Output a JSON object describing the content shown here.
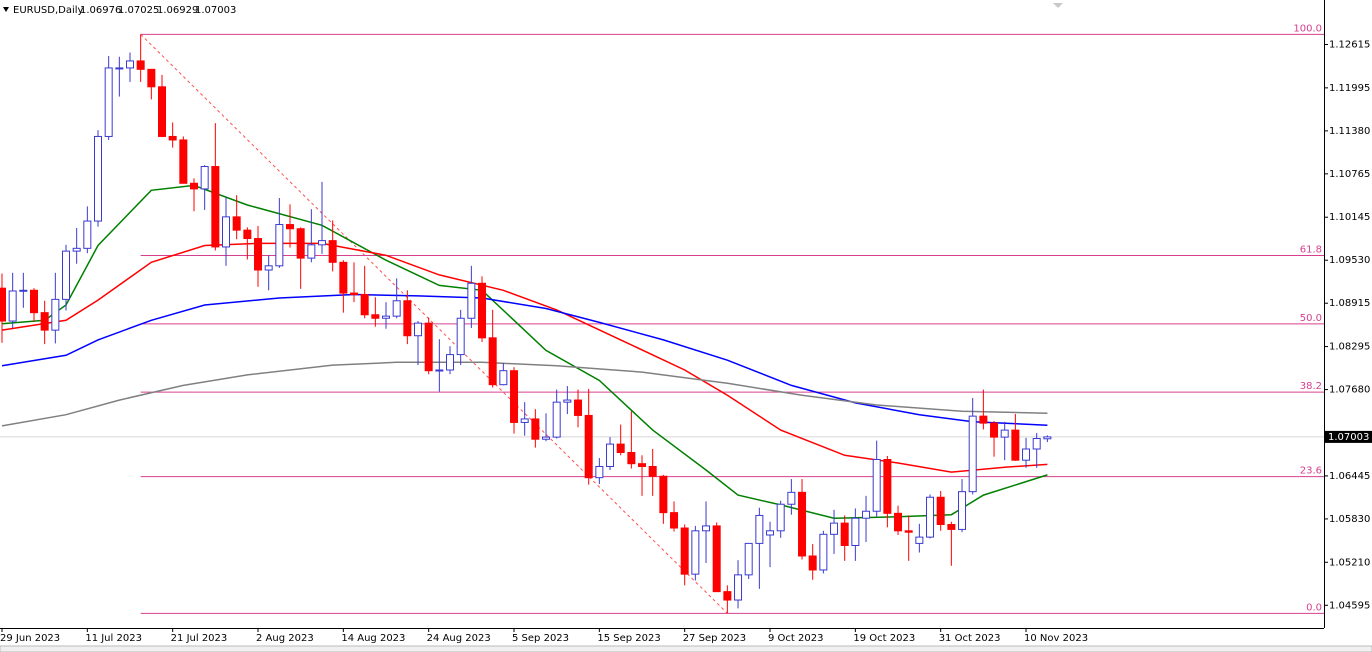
{
  "chart_data": {
    "type": "candlestick",
    "title": "EURUSD,Daily",
    "categories": [
      "29 Jun 2023",
      null,
      null,
      null,
      null,
      null,
      null,
      null,
      "11 Jul 2023",
      null,
      null,
      null,
      null,
      null,
      null,
      null,
      "21 Jul 2023",
      null,
      null,
      null,
      null,
      null,
      null,
      null,
      "2 Aug 2023",
      null,
      null,
      null,
      null,
      null,
      null,
      null,
      "14 Aug 2023",
      null,
      null,
      null,
      null,
      null,
      null,
      null,
      "24 Aug 2023",
      null,
      null,
      null,
      null,
      null,
      null,
      null,
      "5 Sep 2023",
      null,
      null,
      null,
      null,
      null,
      null,
      null,
      "15 Sep 2023",
      null,
      null,
      null,
      null,
      null,
      null,
      null,
      "27 Sep 2023",
      null,
      null,
      null,
      null,
      null,
      null,
      null,
      "9 Oct 2023",
      null,
      null,
      null,
      null,
      null,
      null,
      null,
      "19 Oct 2023",
      null,
      null,
      null,
      null,
      null,
      null,
      null,
      "31 Oct 2023",
      null,
      null,
      null,
      null,
      null,
      null,
      null,
      "10 Nov 2023",
      null,
      null
    ],
    "open": [
      1.0913,
      1.0866,
      1.0909,
      1.091,
      1.0878,
      1.0853,
      1.0897,
      1.0966,
      1.097,
      1.1009,
      1.113,
      1.1228,
      1.1228,
      1.1238,
      1.1226,
      1.1201,
      1.113,
      1.1125,
      1.1063,
      1.1055,
      1.1087,
      1.0972,
      1.1015,
      1.0996,
      1.0984,
      1.0939,
      1.0945,
      1.1004,
      1.0998,
      1.0956,
      1.0975,
      1.0981,
      1.095,
      1.0906,
      1.0904,
      1.0875,
      1.087,
      1.0873,
      1.0895,
      1.0845,
      1.0863,
      1.0795,
      1.0796,
      1.0818,
      1.087,
      1.092,
      1.0842,
      1.0775,
      1.0795,
      1.0721,
      1.0726,
      1.0697,
      1.07,
      1.075,
      1.0753,
      1.0731,
      1.0642,
      1.0658,
      1.069,
      1.0678,
      1.0662,
      1.0658,
      1.0644,
      1.0592,
      1.057,
      1.0504,
      1.0566,
      1.0573,
      1.0479,
      1.0467,
      1.0503,
      1.0548,
      1.056,
      1.0566,
      1.0604,
      1.0621,
      1.053,
      1.051,
      1.0561,
      1.0577,
      1.0545,
      1.0584,
      1.0594,
      1.0668,
      1.0591,
      1.0566,
      1.0548,
      1.0557,
      1.0614,
      1.0575,
      1.0568,
      1.0622,
      1.073,
      1.072,
      1.07,
      1.071,
      1.0667,
      1.0683,
      1.06976
    ],
    "high": [
      1.0934,
      1.0935,
      1.0935,
      1.0913,
      1.0895,
      1.0935,
      1.0975,
      1.0999,
      1.103,
      1.1139,
      1.1245,
      1.1244,
      1.125,
      1.1276,
      1.1226,
      1.1218,
      1.115,
      1.113,
      1.107,
      1.1089,
      1.1149,
      1.1043,
      1.1046,
      1.1,
      1.1002,
      1.096,
      1.1042,
      1.1033,
      1.1,
      1.1026,
      1.1065,
      1.101,
      1.0953,
      1.095,
      1.0945,
      1.09,
      1.0893,
      1.0927,
      1.091,
      1.0866,
      1.0871,
      1.084,
      1.083,
      1.0882,
      1.0945,
      1.093,
      1.0882,
      1.0806,
      1.08,
      1.075,
      1.074,
      1.0734,
      1.0768,
      1.0773,
      1.0768,
      1.0769,
      1.067,
      1.07,
      1.0718,
      1.0737,
      1.0674,
      1.0683,
      1.0646,
      1.0608,
      1.0575,
      1.0573,
      1.0608,
      1.0578,
      1.0488,
      1.0524,
      1.0548,
      1.0599,
      1.0579,
      1.0609,
      1.064,
      1.064,
      1.0547,
      1.0566,
      1.0596,
      1.0588,
      1.0598,
      1.0616,
      1.0695,
      1.0673,
      1.0602,
      1.0588,
      1.0576,
      1.0618,
      1.0623,
      1.0579,
      1.064,
      1.0756,
      1.0768,
      1.0723,
      1.0722,
      1.0733,
      1.0699,
      1.0706,
      1.07025
    ],
    "low": [
      1.0835,
      1.0856,
      1.0885,
      1.0865,
      1.0833,
      1.0834,
      1.0881,
      1.0948,
      1.0963,
      1.1001,
      1.1125,
      1.1187,
      1.1208,
      1.1208,
      1.1183,
      1.1129,
      1.1114,
      1.1063,
      1.1023,
      1.1025,
      1.0967,
      1.0945,
      1.0983,
      1.0954,
      1.0915,
      1.091,
      1.0942,
      1.0971,
      1.0912,
      1.095,
      1.0962,
      1.0937,
      1.0878,
      1.0893,
      1.087,
      1.0858,
      1.0855,
      1.087,
      1.0833,
      1.0803,
      1.079,
      1.0765,
      1.079,
      1.0803,
      1.0856,
      1.0836,
      1.0771,
      1.0774,
      1.0705,
      1.0702,
      1.0685,
      1.0694,
      1.0698,
      1.0733,
      1.0714,
      1.0632,
      1.0633,
      1.0653,
      1.0674,
      1.0655,
      1.0616,
      1.0616,
      1.0576,
      1.0565,
      1.0488,
      1.0495,
      1.052,
      1.0479,
      1.0448,
      1.0455,
      1.0497,
      1.0483,
      1.0514,
      1.0556,
      1.0589,
      1.0525,
      1.0496,
      1.0505,
      1.0533,
      1.0523,
      1.0523,
      1.055,
      1.0586,
      1.0571,
      1.056,
      1.0523,
      1.0535,
      1.0555,
      1.0566,
      1.0516,
      1.0564,
      1.0618,
      1.0711,
      1.0672,
      1.0667,
      1.0666,
      1.0656,
      1.0656,
      1.06929
    ],
    "close": [
      1.0866,
      1.0909,
      1.091,
      1.0878,
      1.0853,
      1.0897,
      1.0966,
      1.097,
      1.1009,
      1.113,
      1.1228,
      1.1228,
      1.1238,
      1.1226,
      1.1201,
      1.113,
      1.1125,
      1.1063,
      1.1055,
      1.1087,
      1.0972,
      1.1015,
      1.0996,
      1.0984,
      1.0939,
      1.0945,
      1.1004,
      1.0998,
      1.0956,
      1.0975,
      1.0981,
      1.095,
      1.0906,
      1.0904,
      1.0875,
      1.087,
      1.0873,
      1.0895,
      1.0845,
      1.0863,
      1.0795,
      1.0796,
      1.0818,
      1.087,
      1.092,
      1.0842,
      1.0775,
      1.0795,
      1.0721,
      1.0726,
      1.0697,
      1.07,
      1.075,
      1.0753,
      1.0731,
      1.0642,
      1.0658,
      1.069,
      1.0678,
      1.0662,
      1.0658,
      1.0644,
      1.0592,
      1.057,
      1.0504,
      1.0566,
      1.0573,
      1.0479,
      1.0467,
      1.0503,
      1.0548,
      1.0588,
      1.0566,
      1.0604,
      1.0621,
      1.053,
      1.051,
      1.0561,
      1.0577,
      1.0545,
      1.0584,
      1.0594,
      1.0668,
      1.0591,
      1.0566,
      1.0564,
      1.0557,
      1.0614,
      1.0575,
      1.0568,
      1.0622,
      1.073,
      1.072,
      1.07,
      1.071,
      1.0667,
      1.0683,
      1.0698,
      1.07003
    ],
    "up_color": "#3a3ad0",
    "down_color": "#ff0000",
    "ylim": [
      1.0427,
      1.1318
    ],
    "yticks": [
      1.12615,
      1.11995,
      {
        "value": 1.1138,
        "label": "1.11380"
      },
      1.10765,
      1.10145,
      {
        "value": 1.0953,
        "label": "1.09530"
      },
      1.08915,
      1.08295,
      {
        "value": 1.0768,
        "label": "1.07680"
      },
      1.06445,
      {
        "value": 1.0583,
        "label": "1.05830"
      },
      {
        "value": 1.0521,
        "label": "1.05210"
      },
      1.04595
    ],
    "last_price": 1.07003,
    "moving_averages": [
      {
        "color": "#008000",
        "x": [
          0,
          4,
          6,
          9,
          14,
          18,
          23,
          30,
          36,
          41,
          45,
          51,
          56,
          61,
          66,
          69,
          73,
          78,
          84,
          89,
          92,
          98
        ],
        "values": [
          1.0862,
          1.0867,
          1.0889,
          1.0974,
          1.1053,
          1.106,
          1.1032,
          1.1003,
          1.0953,
          1.0917,
          1.091,
          1.0824,
          1.0781,
          1.071,
          1.0653,
          1.0617,
          1.0603,
          1.0584,
          1.0586,
          1.0589,
          1.0617,
          1.0646
        ]
      },
      {
        "color": "#ff0000",
        "x": [
          0,
          6,
          9,
          14,
          19,
          24,
          30,
          36,
          41,
          47,
          52,
          58,
          64,
          68,
          73,
          79,
          84,
          89,
          94,
          98
        ],
        "values": [
          1.0853,
          1.0867,
          1.0896,
          1.095,
          1.0974,
          1.0977,
          1.0977,
          1.096,
          1.0932,
          1.091,
          1.0882,
          1.0839,
          1.0796,
          1.076,
          1.071,
          1.0674,
          1.0663,
          1.065,
          1.0657,
          1.0661
        ]
      },
      {
        "color": "#0000ff",
        "x": [
          0,
          6,
          9,
          14,
          19,
          26,
          33,
          39,
          45,
          51,
          56,
          62,
          68,
          74,
          80,
          86,
          91,
          98
        ],
        "values": [
          1.0802,
          1.0817,
          1.0839,
          1.0867,
          1.0889,
          1.0899,
          1.0904,
          1.0902,
          1.0899,
          1.0884,
          1.0864,
          1.0839,
          1.081,
          1.0774,
          1.0749,
          1.0732,
          1.0722,
          1.0717
        ]
      },
      {
        "color": "#808080",
        "x": [
          0,
          6,
          11,
          17,
          23,
          31,
          37,
          45,
          52,
          60,
          68,
          75,
          82,
          90,
          98
        ],
        "values": [
          1.0716,
          1.0732,
          1.0753,
          1.0774,
          1.0789,
          1.0803,
          1.0807,
          1.0807,
          1.0802,
          1.0793,
          1.0777,
          1.076,
          1.0746,
          1.0737,
          1.0734
        ]
      }
    ],
    "fibonacci": {
      "color": "#d6408f",
      "line_color": "#ff5050",
      "from": {
        "index": 13,
        "price": 1.1276
      },
      "to": {
        "index": 68,
        "price": 1.0448
      },
      "levels": [
        {
          "value": 100,
          "label": "100.0"
        },
        61.8,
        {
          "value": 50,
          "label": "50.0"
        },
        38.2,
        23.6,
        {
          "value": 0,
          "label": "0.0"
        }
      ]
    }
  }
}
